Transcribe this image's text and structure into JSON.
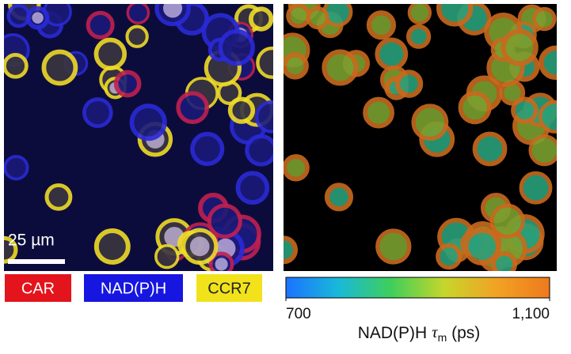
{
  "left_panel": {
    "scale_bar": "25 µm",
    "legend": [
      {
        "label": "CAR",
        "color": "#e3141c"
      },
      {
        "label": "NAD(P)H",
        "color": "#1616e0"
      },
      {
        "label": "CCR7",
        "color": "#f2e21c"
      }
    ]
  },
  "right_panel": {
    "colorbar": {
      "colors": [
        "#1a73ff",
        "#19b9d8",
        "#3fcf5a",
        "#c6d62a",
        "#f2a224",
        "#ee7a1c"
      ],
      "lim": [
        700,
        1100
      ],
      "ticks": [
        700,
        {
          "value": 1100,
          "label": "1,100"
        }
      ],
      "label": {
        "text": "NAD(P)H",
        "symbol": "τ",
        "subscript": "m",
        "unit": "(ps)"
      }
    }
  }
}
